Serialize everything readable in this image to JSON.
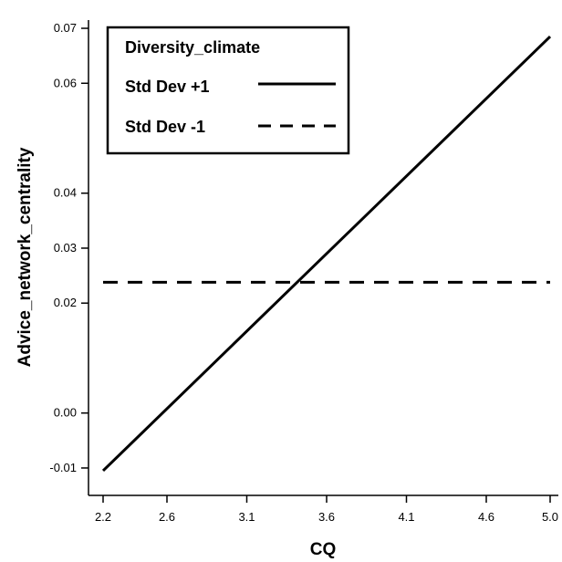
{
  "chart_data": {
    "type": "line",
    "xlabel": "CQ",
    "ylabel": "Advice_network_centrality",
    "xlim": [
      2.2,
      5.0
    ],
    "ylim": [
      -0.012,
      0.071
    ],
    "x_ticks": [
      "2.2",
      "2.6",
      "3.1",
      "3.6",
      "4.1",
      "4.6",
      "5.0"
    ],
    "y_ticks": [
      "-0.01",
      "0.00",
      "0.02",
      "0.03",
      "0.04",
      "0.06",
      "0.07"
    ],
    "grid": false,
    "legend": {
      "title": "Diversity_climate",
      "placement": "top-left"
    },
    "series": [
      {
        "name": "Std Dev +1",
        "style": "solid",
        "x": [
          2.2,
          5.0
        ],
        "y": [
          -0.0105,
          0.0685
        ]
      },
      {
        "name": "Std Dev -1",
        "style": "dashed",
        "x": [
          2.2,
          5.0
        ],
        "y": [
          0.0238,
          0.0238
        ]
      }
    ],
    "colors": {
      "line": "#000000",
      "background": "#ffffff"
    }
  }
}
